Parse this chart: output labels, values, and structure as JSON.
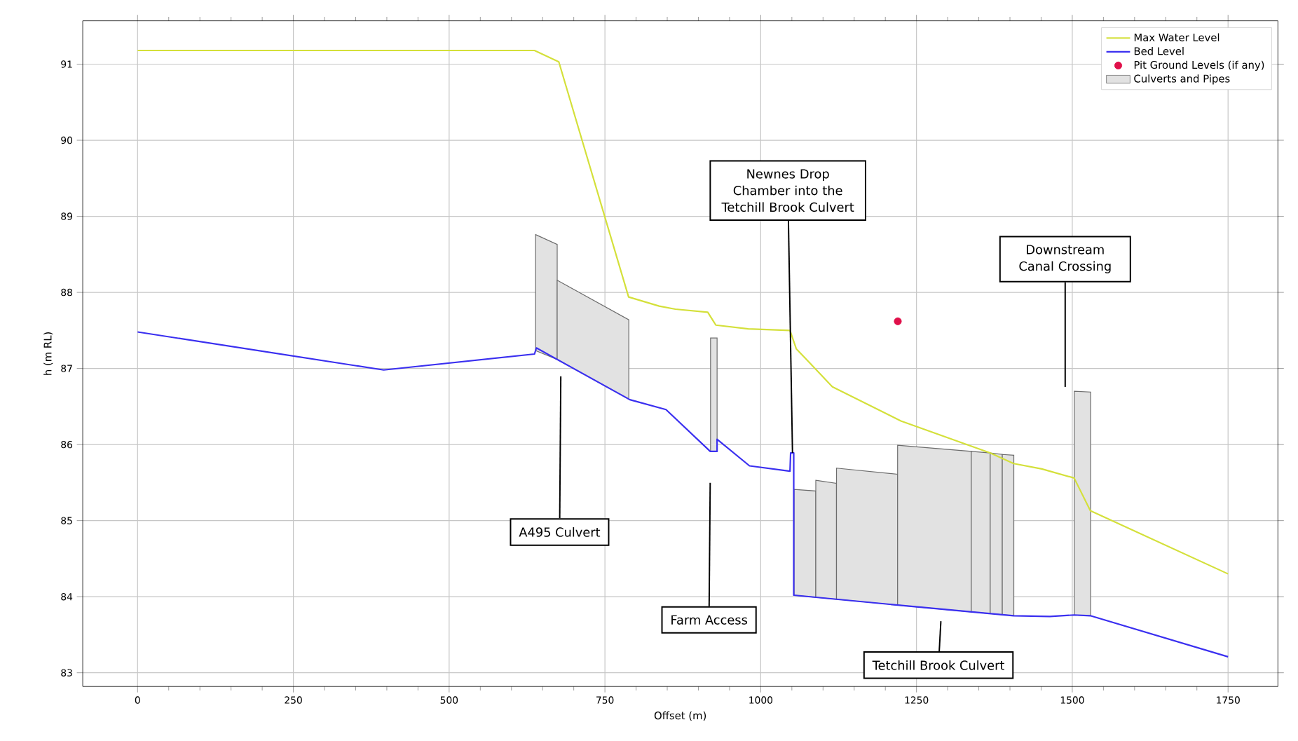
{
  "chart_data": {
    "type": "line",
    "xlabel": "Offset (m)",
    "ylabel": "h (m RL)",
    "xlim": [
      -88,
      1830
    ],
    "ylim": [
      82.82,
      91.57
    ],
    "xticks": [
      0,
      250,
      500,
      750,
      1000,
      1250,
      1500,
      1750
    ],
    "yticks": [
      83,
      84,
      85,
      86,
      87,
      88,
      89,
      90,
      91
    ],
    "grid": true,
    "legend": "top right",
    "series": [
      {
        "name": "Max Water Level",
        "color": "#d4e03a",
        "marker": "none",
        "line_style": "solid",
        "x": [
          0,
          637,
          676,
          788,
          837,
          863,
          915,
          928,
          980,
          1047,
          1057,
          1115,
          1225,
          1368,
          1406,
          1451,
          1503,
          1529,
          1750
        ],
        "values": [
          91.18,
          91.18,
          91.03,
          87.94,
          87.82,
          87.78,
          87.74,
          87.57,
          87.52,
          87.5,
          87.26,
          86.76,
          86.31,
          85.89,
          85.75,
          85.68,
          85.56,
          85.13,
          84.3
        ]
      },
      {
        "name": "Bed Level",
        "color": "#3a2ff0",
        "marker": "none",
        "line_style": "solid",
        "x": [
          0,
          395,
          637,
          640,
          790,
          848,
          919,
          930,
          930,
          982,
          1047,
          1048,
          1053,
          1053,
          1220,
          1406,
          1464,
          1503,
          1529,
          1750
        ],
        "values": [
          87.48,
          86.98,
          87.19,
          87.27,
          86.59,
          86.46,
          85.91,
          85.91,
          86.07,
          85.72,
          85.65,
          85.89,
          85.89,
          84.02,
          83.89,
          83.75,
          83.74,
          83.76,
          83.75,
          83.21
        ]
      },
      {
        "name": "Pit Ground Levels (if any)",
        "type": "scatter",
        "color": "#e0104a",
        "marker": "circle",
        "x": [
          1220
        ],
        "values": [
          87.62
        ]
      },
      {
        "name": "Culverts and Pipes",
        "type": "area",
        "color": "#e2e2e2",
        "x": [
          638.7,
          673.4,
          null,
          673.4,
          788.3,
          null,
          919.5,
          930,
          null,
          1053.5,
          1088.4,
          null,
          1088.4,
          1121.6,
          null,
          1121.6,
          1219.7,
          null,
          1219.7,
          1337.9,
          null,
          1337.9,
          1368.3,
          null,
          1368.3,
          1387.7,
          null,
          1387.7,
          1406.2,
          null,
          1503.2,
          1529.5
        ],
        "values": [
          88.76,
          88.63,
          null,
          88.16,
          87.64,
          null,
          87.4,
          87.4,
          null,
          85.41,
          85.39,
          null,
          85.53,
          85.49,
          null,
          85.69,
          85.61,
          null,
          85.99,
          85.91,
          null,
          85.91,
          85.89,
          null,
          85.89,
          85.87,
          null,
          85.87,
          85.86,
          null,
          86.7,
          86.69
        ]
      }
    ],
    "annotations": [
      "A495 Culvert",
      "Farm Access",
      {
        "text": "Newnes Drop Chamber into the Tetchill Brook Culvert",
        "x": 1051,
        "y": 85.89
      },
      "Downstream Canal Crossing",
      "Tetchill Brook Culvert"
    ]
  }
}
